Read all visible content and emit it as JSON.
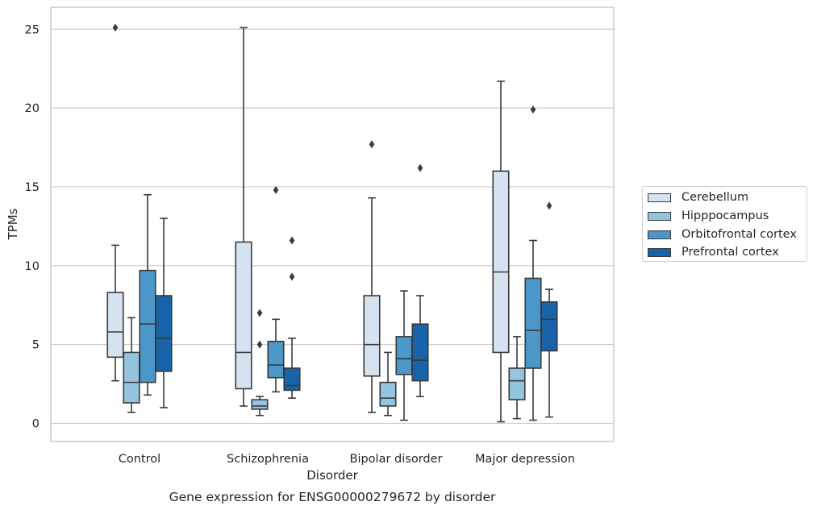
{
  "chart_data": {
    "type": "box",
    "title": "Gene expression for ENSG00000279672 by disorder",
    "xlabel": "Disorder",
    "ylabel": "TPMs",
    "ylim": [
      -1.1,
      26.3
    ],
    "yticks": [
      0,
      5,
      10,
      15,
      20,
      25
    ],
    "grid": true,
    "legend_position": "right",
    "categories": [
      "Control",
      "Schizophrenia",
      "Bipolar disorder",
      "Major depression"
    ],
    "series": [
      {
        "name": "Cerebellum",
        "color": "#d5e3f1",
        "boxes": [
          {
            "whislo": 2.7,
            "q1": 4.2,
            "med": 5.8,
            "q3": 8.3,
            "whishi": 11.3,
            "fliers": [
              25.1
            ]
          },
          {
            "whislo": 1.1,
            "q1": 2.2,
            "med": 4.5,
            "q3": 11.5,
            "whishi": 25.1,
            "fliers": []
          },
          {
            "whislo": 0.7,
            "q1": 3.0,
            "med": 5.0,
            "q3": 8.1,
            "whishi": 14.3,
            "fliers": [
              17.7
            ]
          },
          {
            "whislo": 0.1,
            "q1": 4.5,
            "med": 9.6,
            "q3": 16.0,
            "whishi": 21.7,
            "fliers": []
          }
        ]
      },
      {
        "name": "Hipppocampus",
        "color": "#94c4df",
        "boxes": [
          {
            "whislo": 0.7,
            "q1": 1.3,
            "med": 2.6,
            "q3": 4.5,
            "whishi": 6.7,
            "fliers": []
          },
          {
            "whislo": 0.5,
            "q1": 0.9,
            "med": 1.1,
            "q3": 1.5,
            "whishi": 1.7,
            "fliers": [
              7.0,
              5.0
            ]
          },
          {
            "whislo": 0.5,
            "q1": 1.1,
            "med": 1.6,
            "q3": 2.6,
            "whishi": 4.5,
            "fliers": []
          },
          {
            "whislo": 0.3,
            "q1": 1.5,
            "med": 2.7,
            "q3": 3.5,
            "whishi": 5.5,
            "fliers": []
          }
        ]
      },
      {
        "name": "Orbitofrontal cortex",
        "color": "#4b97c9",
        "boxes": [
          {
            "whislo": 1.8,
            "q1": 2.6,
            "med": 6.3,
            "q3": 9.7,
            "whishi": 14.5,
            "fliers": []
          },
          {
            "whislo": 2.0,
            "q1": 2.9,
            "med": 3.7,
            "q3": 5.2,
            "whishi": 6.6,
            "fliers": [
              14.8
            ]
          },
          {
            "whislo": 0.2,
            "q1": 3.1,
            "med": 4.1,
            "q3": 5.5,
            "whishi": 8.4,
            "fliers": []
          },
          {
            "whislo": 0.2,
            "q1": 3.5,
            "med": 5.9,
            "q3": 9.2,
            "whishi": 11.6,
            "fliers": [
              19.9
            ]
          }
        ]
      },
      {
        "name": "Prefrontal cortex",
        "color": "#1764ab",
        "boxes": [
          {
            "whislo": 1.0,
            "q1": 3.3,
            "med": 5.4,
            "q3": 8.1,
            "whishi": 13.0,
            "fliers": []
          },
          {
            "whislo": 1.6,
            "q1": 2.1,
            "med": 2.4,
            "q3": 3.5,
            "whishi": 5.4,
            "fliers": [
              11.6,
              9.3
            ]
          },
          {
            "whislo": 1.7,
            "q1": 2.7,
            "med": 4.0,
            "q3": 6.3,
            "whishi": 8.1,
            "fliers": [
              16.2
            ]
          },
          {
            "whislo": 0.4,
            "q1": 4.6,
            "med": 6.6,
            "q3": 7.7,
            "whishi": 8.5,
            "fliers": [
              13.8
            ]
          }
        ]
      }
    ]
  }
}
